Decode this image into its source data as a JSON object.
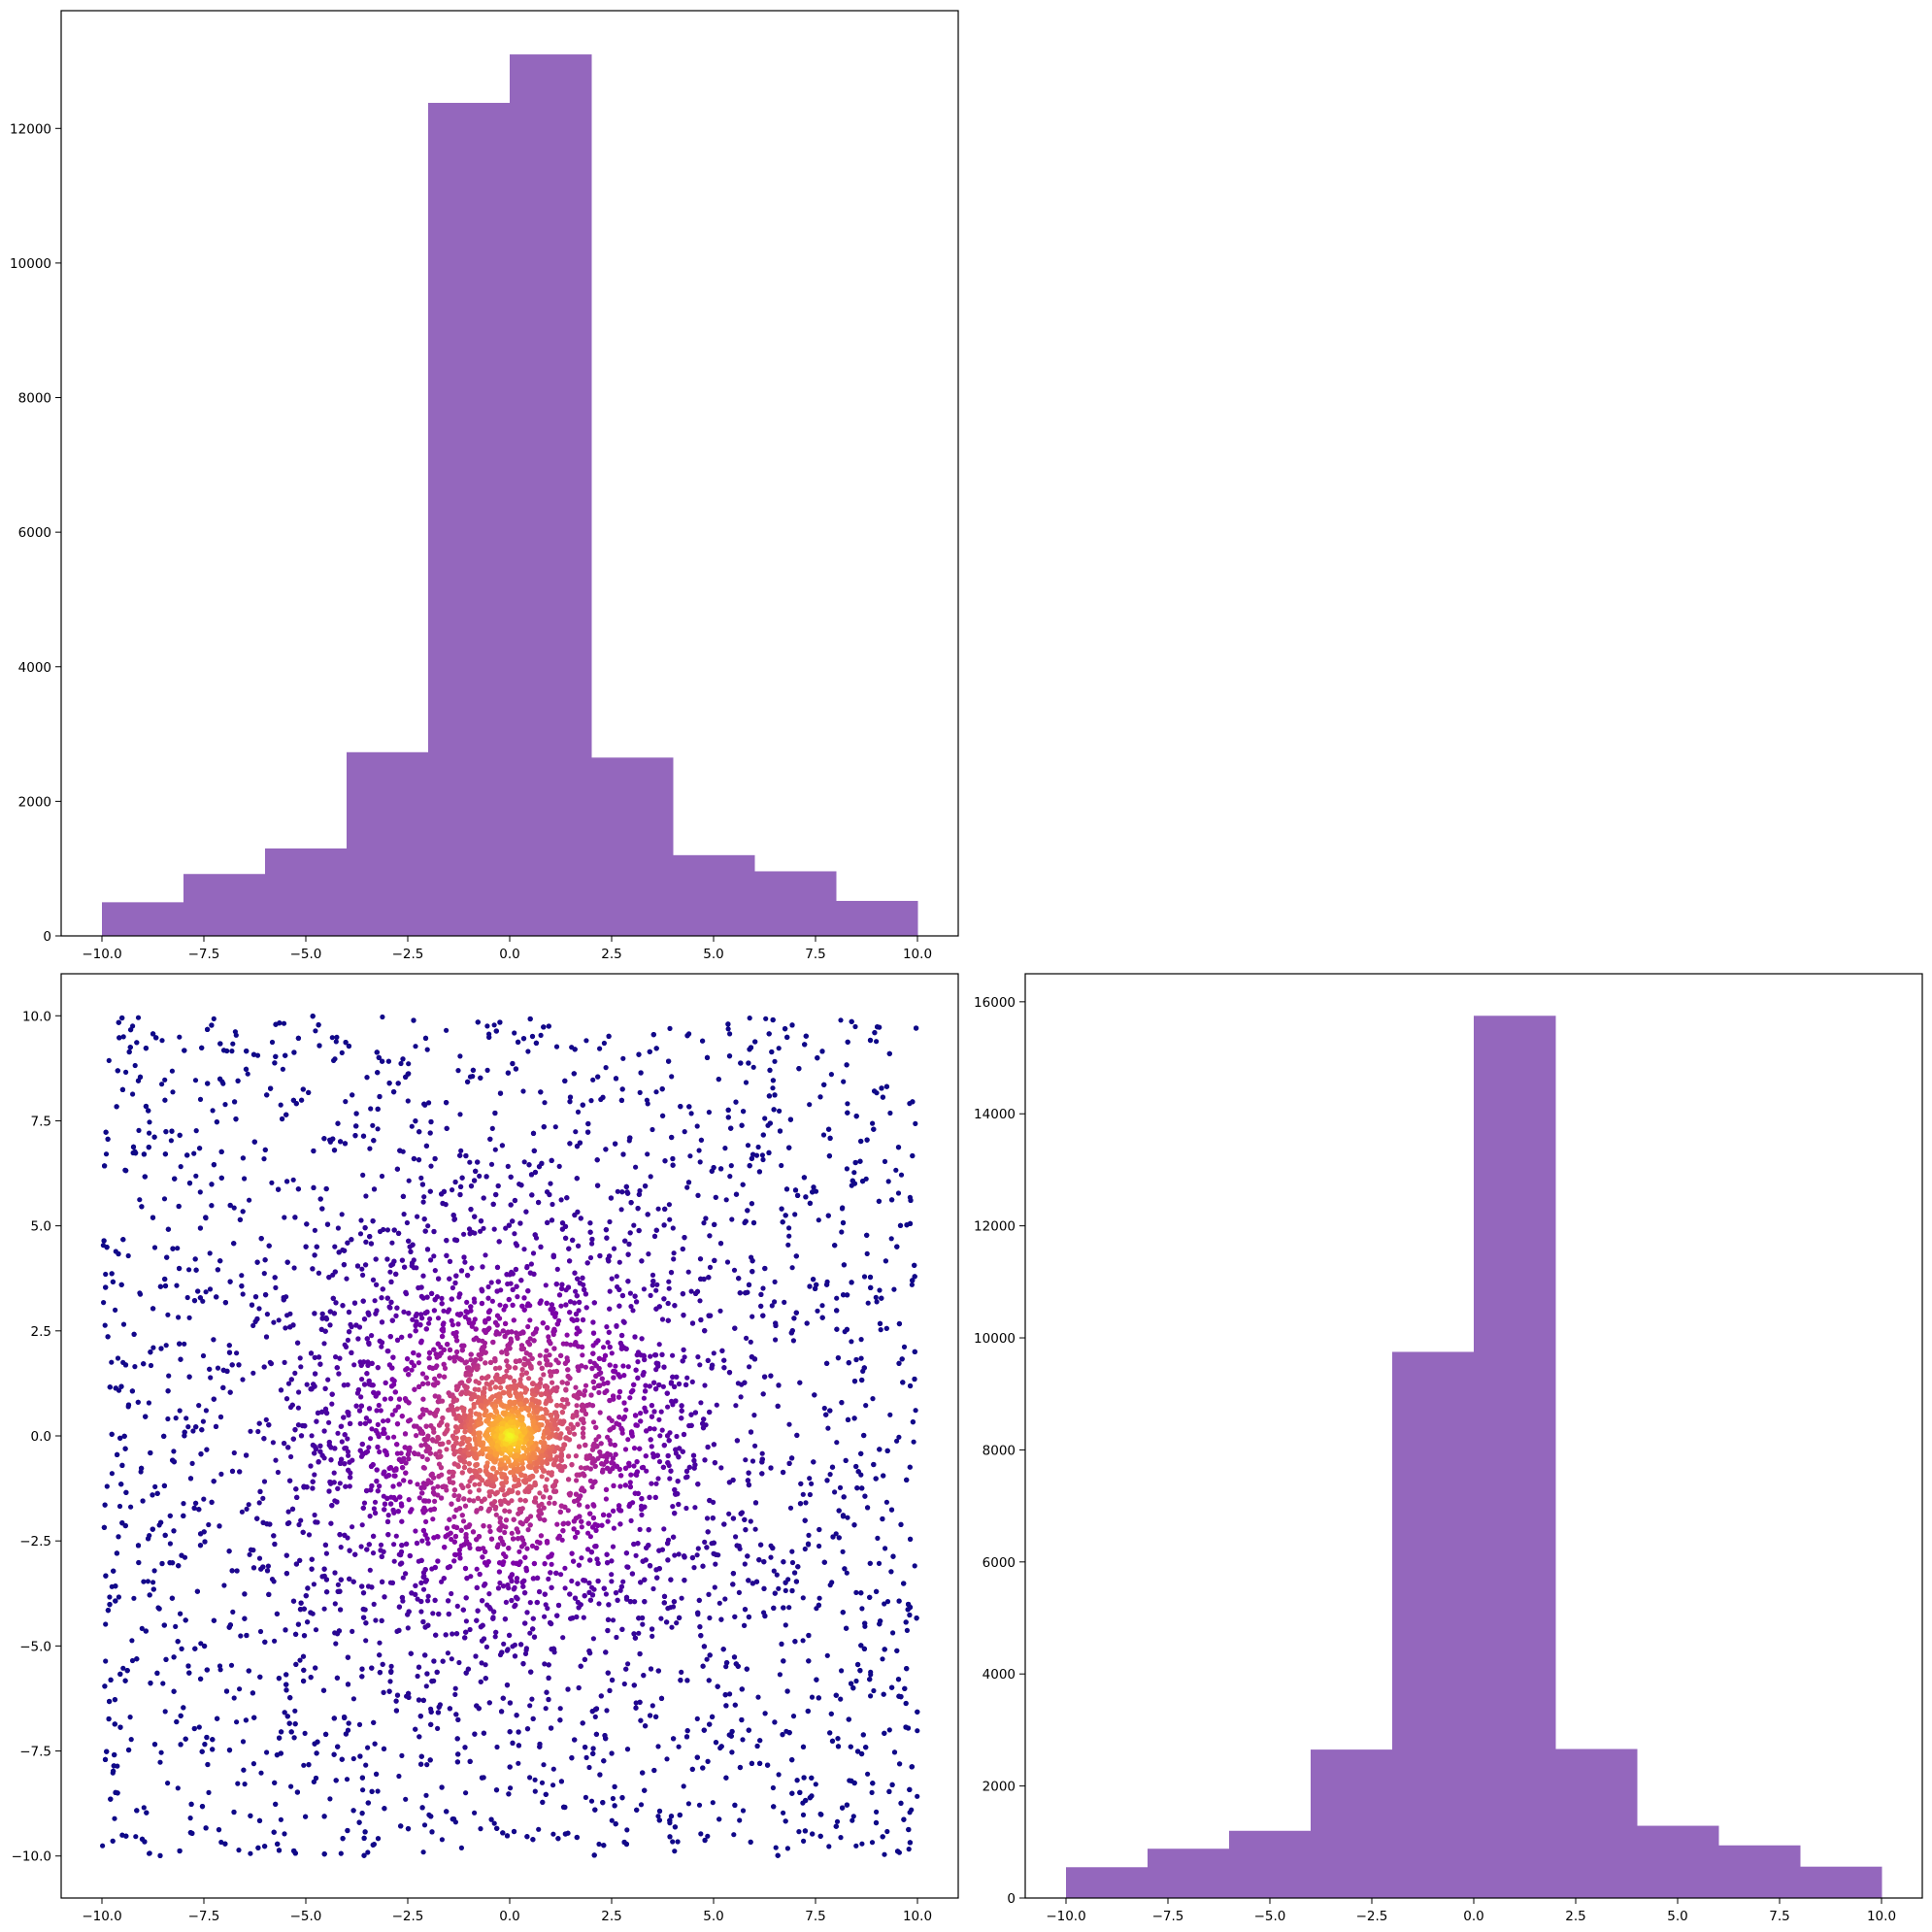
{
  "chart_data": [
    {
      "type": "bar",
      "subplot": "top-left",
      "title": "",
      "xlabel": "",
      "ylabel": "",
      "bin_edges": [
        -10,
        -8,
        -6,
        -4,
        -2,
        0,
        2,
        4,
        6,
        8,
        10
      ],
      "values": [
        500,
        920,
        1300,
        2730,
        12380,
        13100,
        2650,
        1200,
        960,
        520
      ],
      "xlim": [
        -11,
        11
      ],
      "ylim": [
        0,
        13750
      ],
      "xticks": [
        -10,
        -7.5,
        -5,
        -2.5,
        0,
        2.5,
        5,
        7.5,
        10
      ],
      "xtick_labels": [
        "−10.0",
        "−7.5",
        "−5.0",
        "−2.5",
        "0.0",
        "2.5",
        "5.0",
        "7.5",
        "10.0"
      ],
      "yticks": [
        0,
        2000,
        4000,
        6000,
        8000,
        10000,
        12000
      ],
      "ytick_labels": [
        "0",
        "2000",
        "4000",
        "6000",
        "8000",
        "10000",
        "12000"
      ],
      "bar_color": "#9467bd",
      "grid": false
    },
    {
      "type": "scatter",
      "subplot": "bottom-left",
      "title": "",
      "xlabel": "",
      "ylabel": "",
      "description_values": {
        "x_range": [
          -10,
          10
        ],
        "y_range": [
          -10,
          10
        ],
        "n_points_approx": 9000,
        "color_by": "distance from origin",
        "colormap": "plasma",
        "center": [
          0,
          0
        ]
      },
      "xlim": [
        -11,
        11
      ],
      "ylim": [
        -11,
        11
      ],
      "xticks": [
        -10,
        -7.5,
        -5,
        -2.5,
        0,
        2.5,
        5,
        7.5,
        10
      ],
      "xtick_labels": [
        "−10.0",
        "−7.5",
        "−5.0",
        "−2.5",
        "0.0",
        "2.5",
        "5.0",
        "7.5",
        "10.0"
      ],
      "yticks": [
        -10,
        -7.5,
        -5,
        -2.5,
        0,
        2.5,
        5,
        7.5,
        10
      ],
      "ytick_labels": [
        "−10.0",
        "−7.5",
        "−5.0",
        "−2.5",
        "0.0",
        "2.5",
        "5.0",
        "7.5",
        "10.0"
      ],
      "grid": false
    },
    {
      "type": "bar",
      "subplot": "bottom-right",
      "title": "",
      "xlabel": "",
      "ylabel": "",
      "bin_edges": [
        -10,
        -8,
        -6,
        -4,
        -2,
        0,
        2,
        4,
        6,
        8,
        10
      ],
      "values": [
        550,
        880,
        1200,
        2650,
        9750,
        15750,
        2660,
        1290,
        940,
        560
      ],
      "xlim": [
        -11,
        11
      ],
      "ylim": [
        0,
        16500
      ],
      "xticks": [
        -10,
        -7.5,
        -5,
        -2.5,
        0,
        2.5,
        5,
        7.5,
        10
      ],
      "xtick_labels": [
        "−10.0",
        "−7.5",
        "−5.0",
        "−2.5",
        "0.0",
        "2.5",
        "5.0",
        "7.5",
        "10.0"
      ],
      "yticks": [
        0,
        2000,
        4000,
        6000,
        8000,
        10000,
        12000,
        14000,
        16000
      ],
      "ytick_labels": [
        "0",
        "2000",
        "4000",
        "6000",
        "8000",
        "10000",
        "12000",
        "14000",
        "16000"
      ],
      "bar_color": "#9467bd",
      "grid": false
    }
  ]
}
